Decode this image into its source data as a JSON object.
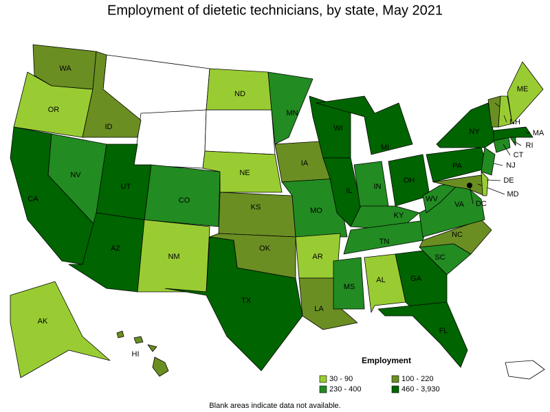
{
  "title": "Employment of dietetic technicians, by state, May 2021",
  "legend": {
    "title": "Employment",
    "items": [
      {
        "label": "30 - 90",
        "color": "#99cc33"
      },
      {
        "label": "100 - 220",
        "color": "#6b8e23"
      },
      {
        "label": "230 - 400",
        "color": "#228b22"
      },
      {
        "label": "460 - 3,930",
        "color": "#006400"
      }
    ]
  },
  "note": "Blank areas indicate data not available.",
  "states": [
    {
      "label": "WA",
      "color": "#6b8e23"
    },
    {
      "label": "OR",
      "color": "#99cc33"
    },
    {
      "label": "CA",
      "color": "#006400"
    },
    {
      "label": "NV",
      "color": "#228b22"
    },
    {
      "label": "ID",
      "color": "#6b8e23"
    },
    {
      "label": "UT",
      "color": "#006400"
    },
    {
      "label": "AZ",
      "color": "#006400"
    },
    {
      "label": "CO",
      "color": "#228b22"
    },
    {
      "label": "NM",
      "color": "#99cc33"
    },
    {
      "label": "ND",
      "color": "#99cc33"
    },
    {
      "label": "NE",
      "color": "#99cc33"
    },
    {
      "label": "KS",
      "color": "#6b8e23"
    },
    {
      "label": "OK",
      "color": "#6b8e23"
    },
    {
      "label": "TX",
      "color": "#006400"
    },
    {
      "label": "MN",
      "color": "#228b22"
    },
    {
      "label": "IA",
      "color": "#6b8e23"
    },
    {
      "label": "MO",
      "color": "#228b22"
    },
    {
      "label": "AR",
      "color": "#99cc33"
    },
    {
      "label": "LA",
      "color": "#6b8e23"
    },
    {
      "label": "WI",
      "color": "#006400"
    },
    {
      "label": "IL",
      "color": "#006400"
    },
    {
      "label": "MI",
      "color": "#006400"
    },
    {
      "label": "IN",
      "color": "#228b22"
    },
    {
      "label": "OH",
      "color": "#006400"
    },
    {
      "label": "KY",
      "color": "#228b22"
    },
    {
      "label": "TN",
      "color": "#228b22"
    },
    {
      "label": "MS",
      "color": "#228b22"
    },
    {
      "label": "AL",
      "color": "#99cc33"
    },
    {
      "label": "GA",
      "color": "#006400"
    },
    {
      "label": "FL",
      "color": "#006400"
    },
    {
      "label": "SC",
      "color": "#228b22"
    },
    {
      "label": "NC",
      "color": "#6b8e23"
    },
    {
      "label": "VA",
      "color": "#228b22"
    },
    {
      "label": "WV",
      "color": "#228b22"
    },
    {
      "label": "PA",
      "color": "#006400"
    },
    {
      "label": "NY",
      "color": "#006400"
    },
    {
      "label": "NJ",
      "color": "#228b22"
    },
    {
      "label": "MD",
      "color": "#6b8e23"
    },
    {
      "label": "DE",
      "color": "#99cc33"
    },
    {
      "label": "CT",
      "color": "#228b22"
    },
    {
      "label": "RI",
      "color": "#228b22"
    },
    {
      "label": "MA",
      "color": "#006400"
    },
    {
      "label": "VT",
      "color": "#6b8e23"
    },
    {
      "label": "NH",
      "color": "#99cc33"
    },
    {
      "label": "ME",
      "color": "#99cc33"
    },
    {
      "label": "AK",
      "color": "#99cc33"
    },
    {
      "label": "HI",
      "color": "#6b8e23"
    },
    {
      "label": "DC",
      "color": "#006400"
    }
  ]
}
